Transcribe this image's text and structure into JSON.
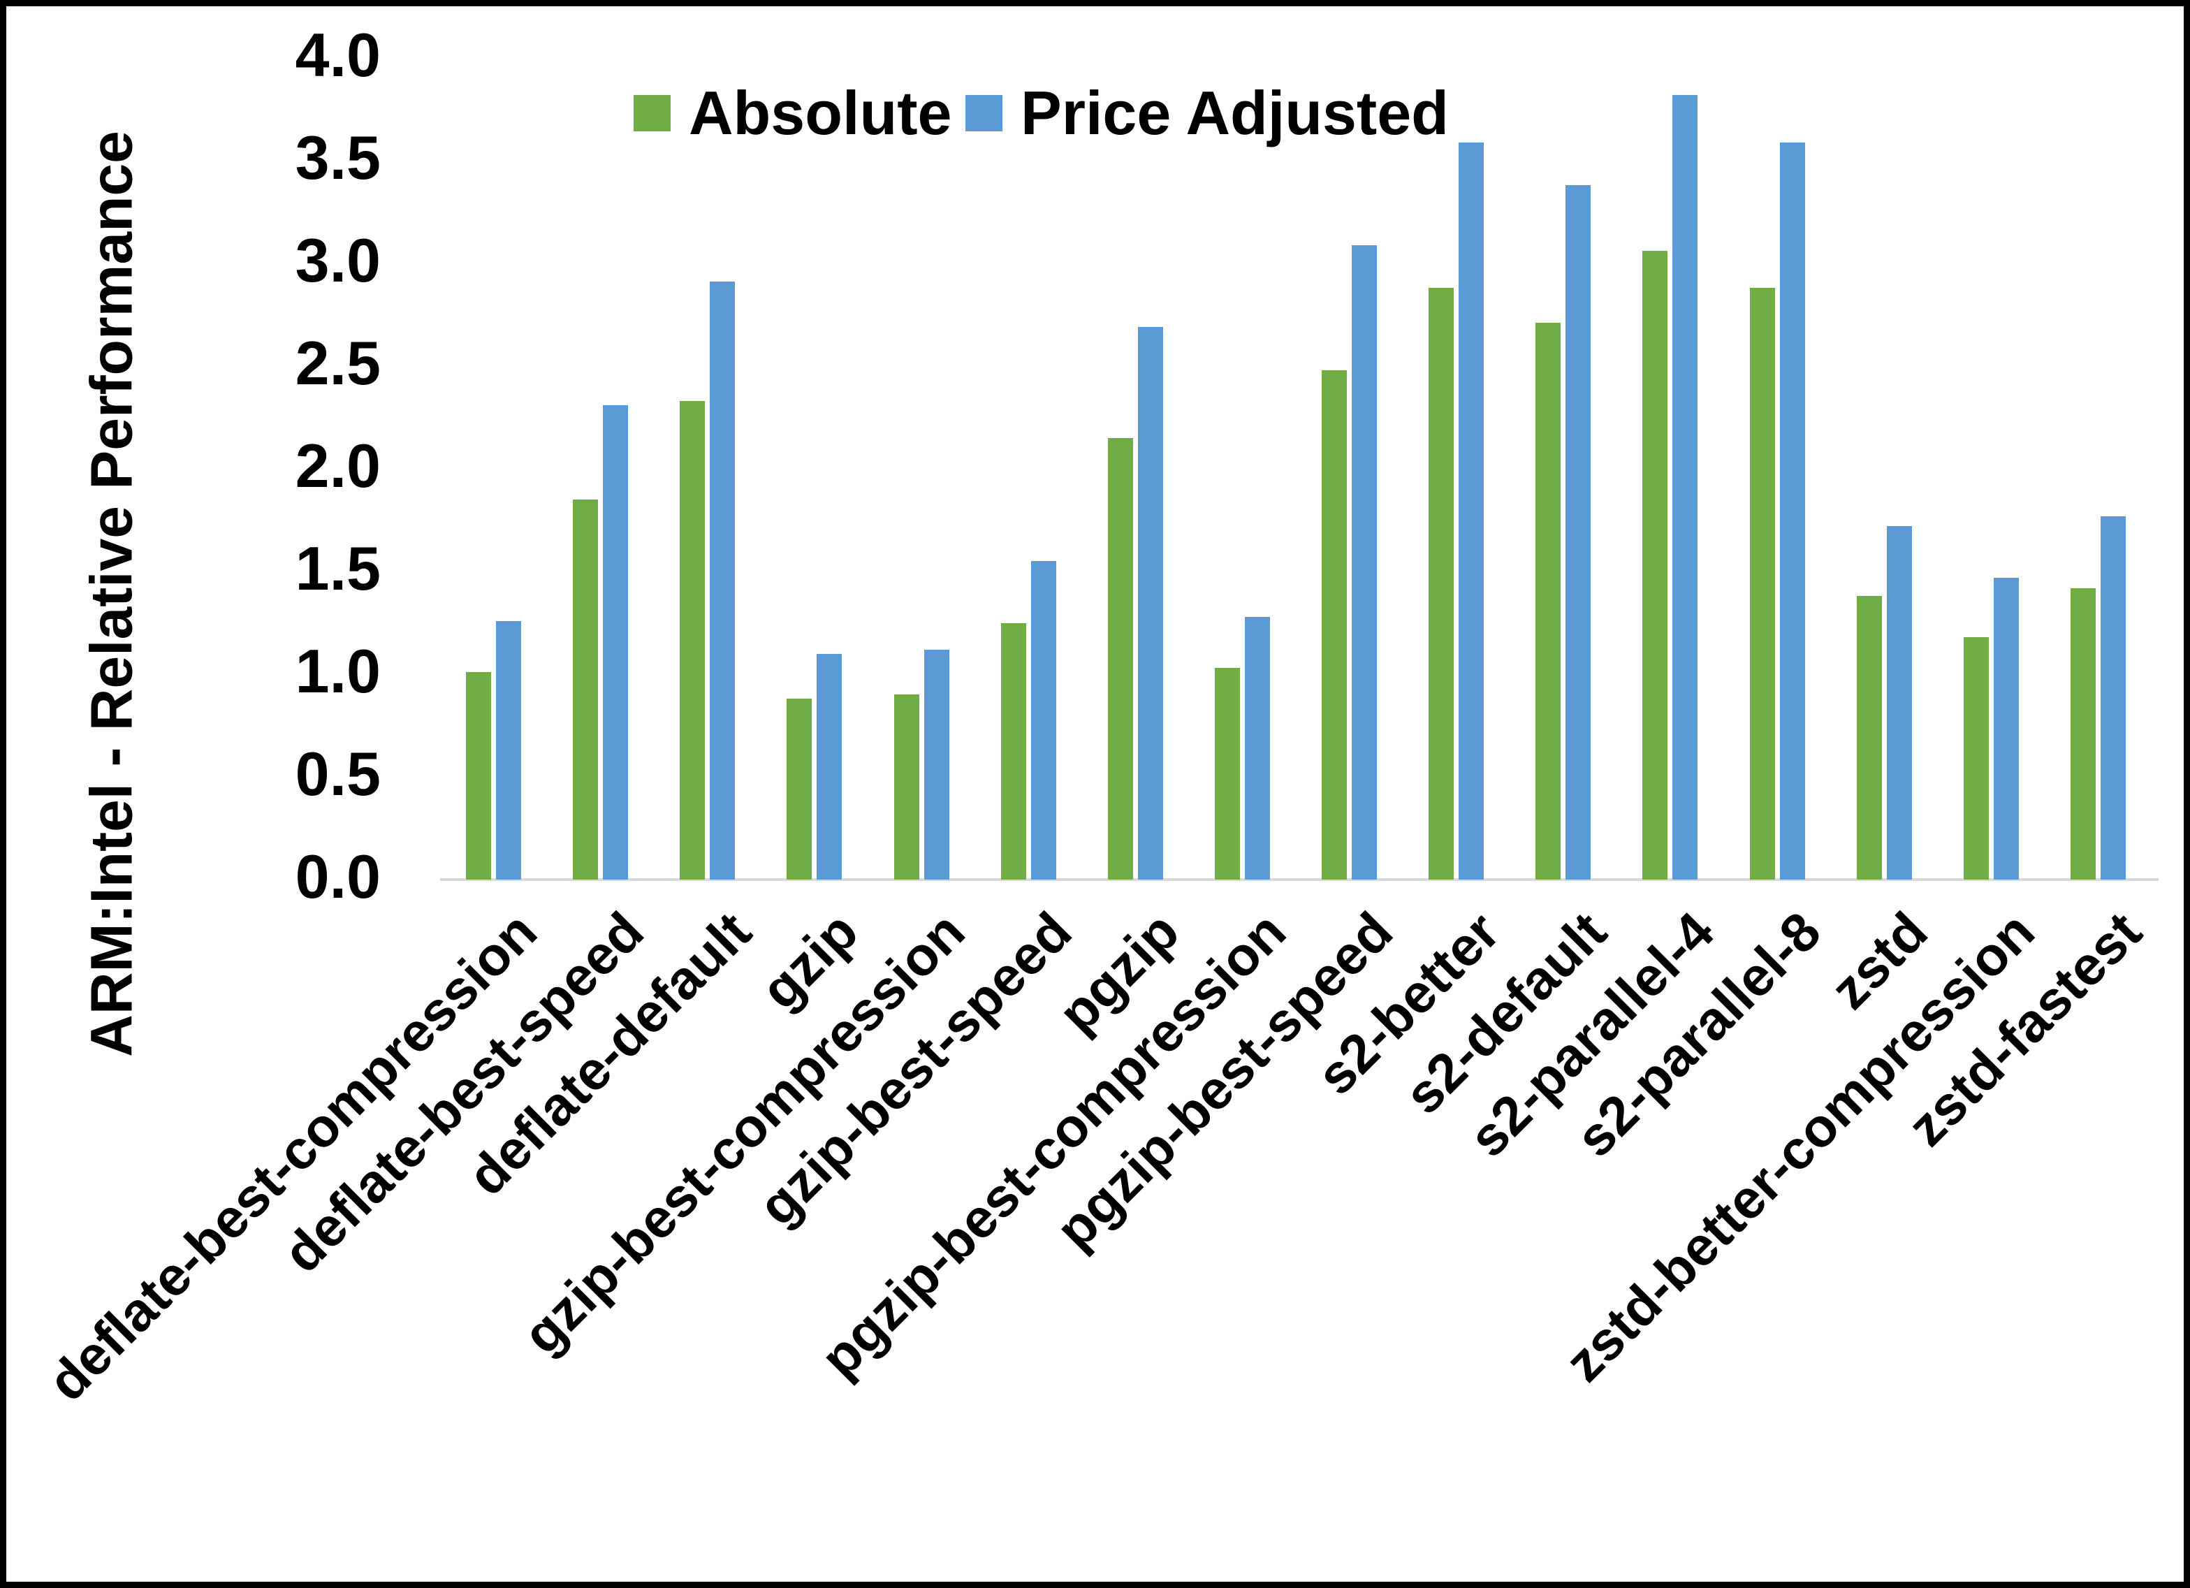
{
  "chart_data": {
    "type": "bar",
    "title": "",
    "xlabel": "",
    "ylabel": "ARM:Intel - Relative Performance",
    "ylim": [
      0.0,
      4.0
    ],
    "ytick_step": 0.5,
    "yticks": [
      "0.0",
      "0.5",
      "1.0",
      "1.5",
      "2.0",
      "2.5",
      "3.0",
      "3.5",
      "4.0"
    ],
    "grid": false,
    "legend_position": "top-center",
    "categories": [
      "deflate-best-compression",
      "deflate-best-speed",
      "deflate-default",
      "gzip",
      "gzip-best-compression",
      "gzip-best-speed",
      "pgzip",
      "pgzip-best-compression",
      "pgzip-best-speed",
      "s2-better",
      "s2-default",
      "s2-parallel-4",
      "s2-parallel-8",
      "zstd",
      "zstd-better-compression",
      "zstd-fastest"
    ],
    "series": [
      {
        "name": "Absolute",
        "color": "#70AD47",
        "values": [
          1.01,
          1.85,
          2.33,
          0.88,
          0.9,
          1.25,
          2.15,
          1.03,
          2.48,
          2.88,
          2.71,
          3.06,
          2.88,
          1.38,
          1.18,
          1.42
        ]
      },
      {
        "name": "Price Adjusted",
        "color": "#5B9BD5",
        "values": [
          1.26,
          2.31,
          2.91,
          1.1,
          1.12,
          1.55,
          2.69,
          1.28,
          3.09,
          3.59,
          3.38,
          3.82,
          3.59,
          1.72,
          1.47,
          1.77
        ]
      }
    ]
  },
  "colors": {
    "background": "#FFFFFF",
    "border": "#000000",
    "axis_line": "#D9D9D9",
    "text": "#000000"
  }
}
